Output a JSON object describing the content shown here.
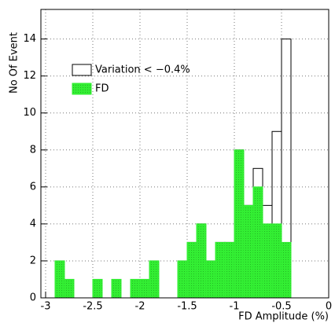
{
  "chart_data": {
    "type": "histogram",
    "x_label": "FD Amplitude (%)",
    "y_label": "No Of Event",
    "bins": [
      -2.9,
      -2.8,
      -2.7,
      -2.6,
      -2.5,
      -2.4,
      -2.3,
      -2.2,
      -2.1,
      -2.0,
      -1.9,
      -1.8,
      -1.7,
      -1.6,
      -1.5,
      -1.4,
      -1.3,
      -1.2,
      -1.1,
      -1.0,
      -0.9,
      -0.8,
      -0.7,
      -0.6,
      -0.5,
      -0.4
    ],
    "series": [
      {
        "name": "Variation < −0.4%",
        "color": "#000000",
        "fill": false,
        "values": [
          2,
          1,
          0,
          0,
          1,
          0,
          1,
          0,
          1,
          1,
          2,
          0,
          0,
          2,
          3,
          4,
          2,
          3,
          3,
          8,
          5,
          7,
          5,
          9,
          14
        ]
      },
      {
        "name": "FD",
        "color": "#33ee33",
        "fill": true,
        "values": [
          2,
          1,
          0,
          0,
          1,
          0,
          1,
          0,
          1,
          1,
          2,
          0,
          0,
          2,
          3,
          4,
          2,
          3,
          3,
          8,
          5,
          6,
          4,
          4,
          3
        ]
      }
    ],
    "xlim": [
      -3.05,
      0
    ],
    "ylim": [
      0,
      15.6
    ],
    "xticks": [
      -3,
      -2.5,
      -2,
      -1.5,
      -1,
      -0.5,
      0
    ],
    "yticks": [
      0,
      2,
      4,
      6,
      8,
      10,
      12,
      14
    ],
    "grid": true
  }
}
